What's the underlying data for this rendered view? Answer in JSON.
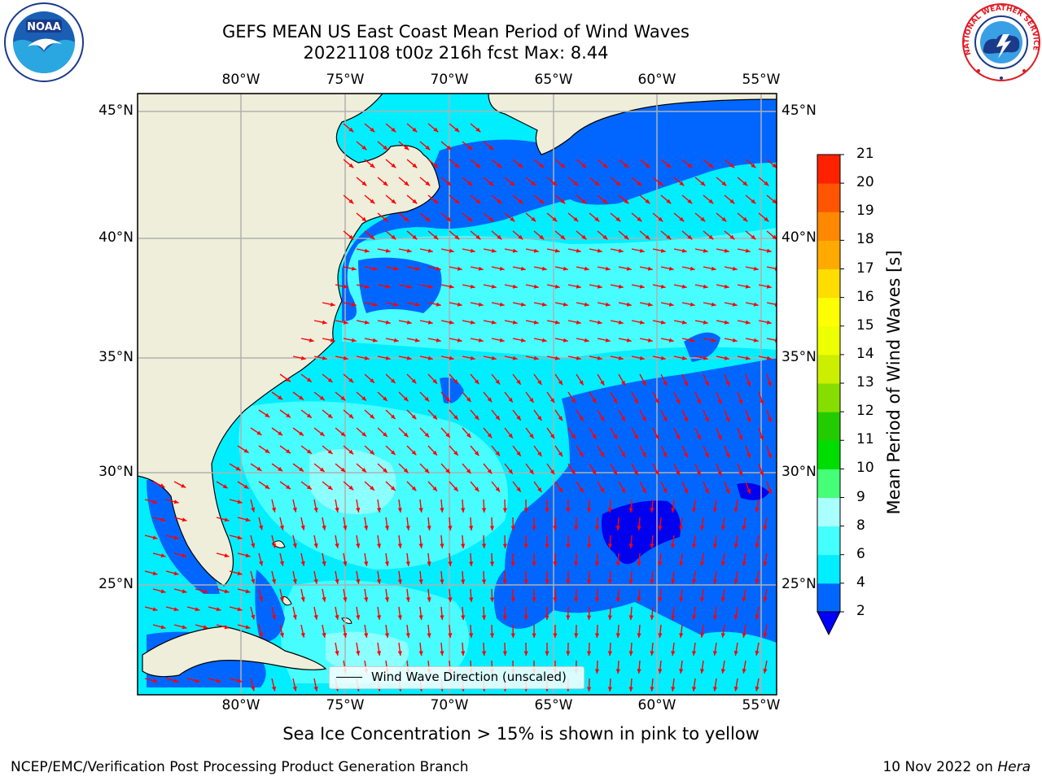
{
  "title": {
    "line1": "GEFS MEAN US East Coast Mean Period of Wind Waves",
    "line2": "20221108 t00z 216h fcst   Max: 8.44"
  },
  "map": {
    "lon_ticks": [
      "80°W",
      "75°W",
      "70°W",
      "65°W",
      "60°W",
      "55°W"
    ],
    "lat_ticks": [
      "45°N",
      "40°N",
      "35°N",
      "30°N",
      "25°N"
    ],
    "legend_label": "Wind Wave Direction (unscaled)",
    "arrow_color": "#ff0000",
    "land_color": "#efeedb"
  },
  "colorbar": {
    "label": "Mean Period of Wind Waves [s]",
    "ticks": [
      "2",
      "4",
      "6",
      "8",
      "9",
      "10",
      "11",
      "12",
      "13",
      "14",
      "15",
      "16",
      "17",
      "18",
      "19",
      "20",
      "21"
    ],
    "colors": [
      "#0066ff",
      "#00eeff",
      "#44ffff",
      "#aaffff",
      "#44ff77",
      "#00dd00",
      "#22cc00",
      "#88dd00",
      "#ccee00",
      "#eeff00",
      "#ffff00",
      "#ffdd00",
      "#ffaa00",
      "#ff8800",
      "#ff5500",
      "#ff2200",
      "#ff0000"
    ],
    "extend_color": "#0000ff"
  },
  "footer": {
    "note": "Sea Ice Concentration > 15% is shown in pink to yellow",
    "branch": "NCEP/EMC/Verification Post Processing Product Generation Branch",
    "date": "10 Nov 2022 on",
    "machine": "Hera"
  },
  "logos": {
    "left": "NOAA",
    "right": "NATIONAL WEATHER SERVICE"
  }
}
